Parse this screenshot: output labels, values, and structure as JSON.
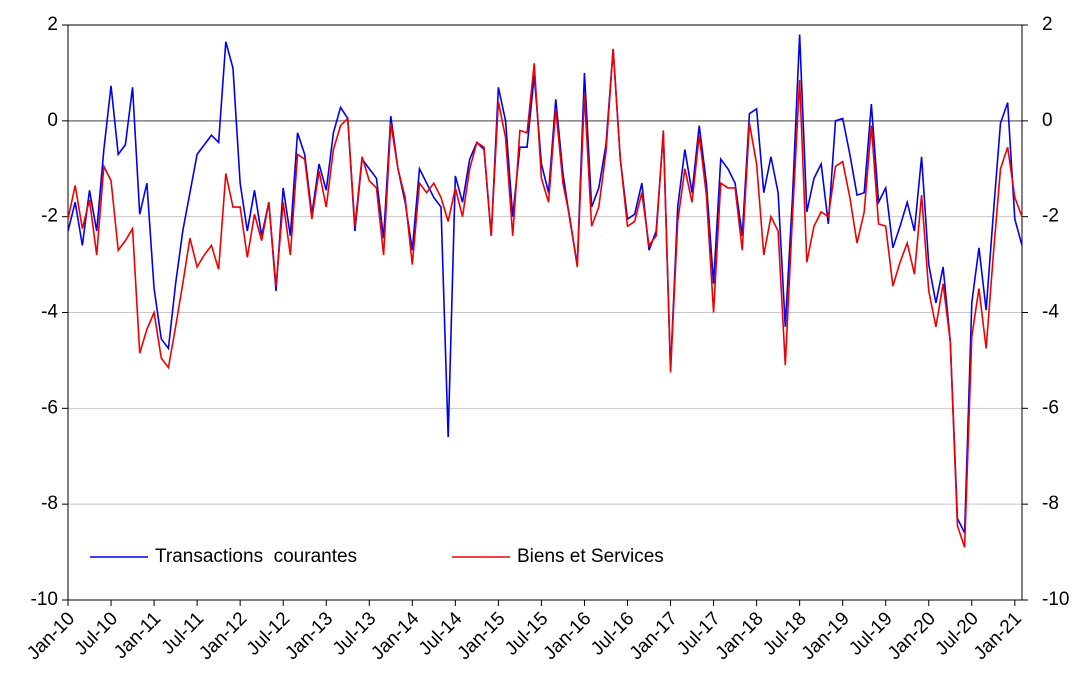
{
  "chart_data": {
    "type": "line",
    "categories": [
      "Jan-10",
      null,
      null,
      null,
      null,
      null,
      "Jul-10",
      null,
      null,
      null,
      null,
      null,
      "Jan-11",
      null,
      null,
      null,
      null,
      null,
      "Jul-11",
      null,
      null,
      null,
      null,
      null,
      "Jan-12",
      null,
      null,
      null,
      null,
      null,
      "Jul-12",
      null,
      null,
      null,
      null,
      null,
      "Jan-13",
      null,
      null,
      null,
      null,
      null,
      "Jul-13",
      null,
      null,
      null,
      null,
      null,
      "Jan-14",
      null,
      null,
      null,
      null,
      null,
      "Jul-14",
      null,
      null,
      null,
      null,
      null,
      "Jan-15",
      null,
      null,
      null,
      null,
      null,
      "Jul-15",
      null,
      null,
      null,
      null,
      null,
      "Jan-16",
      null,
      null,
      null,
      null,
      null,
      "Jul-16",
      null,
      null,
      null,
      null,
      null,
      "Jan-17",
      null,
      null,
      null,
      null,
      null,
      "Jul-17",
      null,
      null,
      null,
      null,
      null,
      "Jan-18",
      null,
      null,
      null,
      null,
      null,
      "Jul-18",
      null,
      null,
      null,
      null,
      null,
      "Jan-19",
      null,
      null,
      null,
      null,
      null,
      "Jul-19",
      null,
      null,
      null,
      null,
      null,
      "Jan-20",
      null,
      null,
      null,
      null,
      null,
      "Jul-20",
      null,
      null,
      null,
      null,
      null,
      "Jan-21",
      null
    ],
    "series": [
      {
        "name": "Transactions  courantes",
        "color": "#0000ee",
        "values": [
          -2.3,
          -1.7,
          -2.6,
          -1.45,
          -2.3,
          -0.6,
          0.73,
          -0.7,
          -0.5,
          0.7,
          -1.95,
          -1.3,
          -3.5,
          -4.55,
          -4.75,
          -3.4,
          -2.3,
          -1.5,
          -0.7,
          -0.5,
          -0.3,
          -0.45,
          1.65,
          1.1,
          -1.3,
          -2.3,
          -1.45,
          -2.4,
          -1.7,
          -3.55,
          -1.4,
          -2.4,
          -0.25,
          -0.7,
          -1.95,
          -0.9,
          -1.45,
          -0.25,
          0.28,
          0.05,
          -2.3,
          -0.8,
          -1.0,
          -1.2,
          -2.45,
          0.1,
          -1.0,
          -1.7,
          -2.7,
          -1.0,
          -1.3,
          -1.6,
          -1.8,
          -6.6,
          -1.15,
          -1.7,
          -0.8,
          -0.45,
          -0.6,
          -2.4,
          0.7,
          0.0,
          -2.0,
          -0.55,
          -0.55,
          0.95,
          -0.9,
          -1.5,
          0.45,
          -1.1,
          -2.1,
          -3.0,
          1.0,
          -1.8,
          -1.4,
          -0.5,
          1.5,
          -0.8,
          -2.05,
          -1.95,
          -1.3,
          -2.7,
          -2.3,
          -0.25,
          -5.2,
          -1.8,
          -0.6,
          -1.5,
          -0.1,
          -1.3,
          -3.4,
          -0.8,
          -1.0,
          -1.3,
          -2.4,
          0.15,
          0.25,
          -1.5,
          -0.75,
          -1.5,
          -4.3,
          -1.6,
          1.8,
          -1.9,
          -1.2,
          -0.9,
          -2.15,
          0.0,
          0.05,
          -0.7,
          -1.55,
          -1.5,
          0.35,
          -1.7,
          -1.4,
          -2.65,
          -2.2,
          -1.7,
          -2.3,
          -0.75,
          -3.0,
          -3.8,
          -3.05,
          -4.6,
          -8.3,
          -8.6,
          -3.8,
          -2.65,
          -3.95,
          -1.95,
          -0.05,
          0.38,
          -2.05,
          -2.6
        ]
      },
      {
        "name": "Biens et Services",
        "color": "#ee0000",
        "values": [
          -2.05,
          -1.35,
          -2.25,
          -1.65,
          -2.8,
          -0.95,
          -1.25,
          -2.7,
          -2.5,
          -2.25,
          -4.85,
          -4.35,
          -4.0,
          -4.95,
          -5.15,
          -4.3,
          -3.4,
          -2.45,
          -3.05,
          -2.8,
          -2.6,
          -3.1,
          -1.1,
          -1.8,
          -1.8,
          -2.85,
          -1.95,
          -2.5,
          -1.7,
          -3.45,
          -1.7,
          -2.8,
          -0.7,
          -0.8,
          -2.05,
          -1.05,
          -1.8,
          -0.6,
          -0.1,
          0.05,
          -2.2,
          -0.75,
          -1.25,
          -1.4,
          -2.8,
          -0.05,
          -1.0,
          -1.6,
          -3.0,
          -1.3,
          -1.5,
          -1.3,
          -1.6,
          -2.1,
          -1.4,
          -2.0,
          -1.0,
          -0.45,
          -0.55,
          -2.4,
          0.4,
          -0.35,
          -2.4,
          -0.2,
          -0.25,
          1.2,
          -1.2,
          -1.7,
          0.25,
          -1.3,
          -2.05,
          -3.05,
          0.55,
          -2.2,
          -1.8,
          -0.65,
          1.5,
          -0.8,
          -2.2,
          -2.1,
          -1.5,
          -2.6,
          -2.4,
          -0.2,
          -5.25,
          -2.1,
          -1.0,
          -1.7,
          -0.3,
          -1.55,
          -4.0,
          -1.3,
          -1.4,
          -1.4,
          -2.7,
          -0.05,
          -0.9,
          -2.8,
          -2.0,
          -2.3,
          -5.1,
          -2.0,
          0.85,
          -2.95,
          -2.2,
          -1.9,
          -2.0,
          -0.95,
          -0.85,
          -1.6,
          -2.55,
          -1.9,
          -0.1,
          -2.15,
          -2.2,
          -3.45,
          -2.95,
          -2.55,
          -3.2,
          -1.55,
          -3.55,
          -4.3,
          -3.4,
          -4.6,
          -8.45,
          -8.9,
          -4.5,
          -3.5,
          -4.75,
          -2.8,
          -1.0,
          -0.55,
          -1.6,
          -2.0
        ]
      }
    ],
    "ylim": [
      -10,
      2
    ],
    "yticks": [
      -10,
      -8,
      -6,
      -4,
      -2,
      0,
      2
    ],
    "y2lim": [
      -10,
      2
    ],
    "y2ticks": [
      -10,
      -8,
      -6,
      -4,
      -2,
      0,
      2
    ],
    "grid": true,
    "zero_line": true,
    "legend": "lower left"
  }
}
